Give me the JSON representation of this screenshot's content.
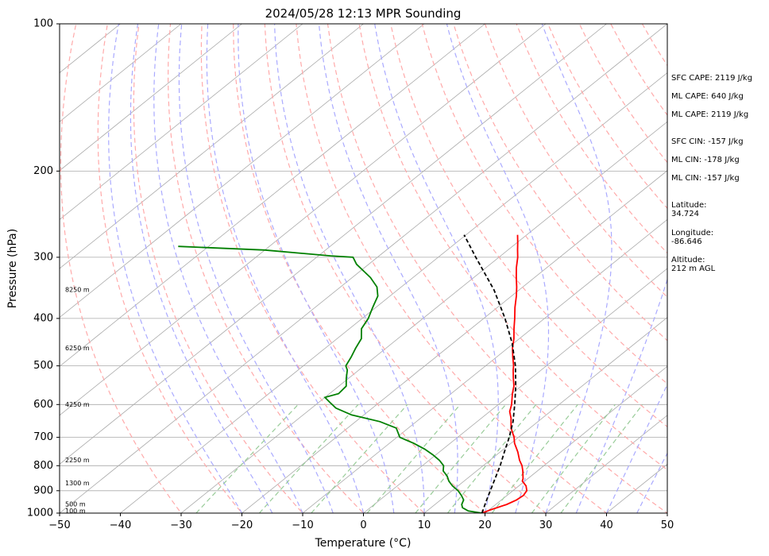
{
  "chart_data": {
    "type": "skew-t",
    "title": "2024/05/28 12:13 MPR Sounding",
    "xlabel": "Temperature (°C)",
    "ylabel": "Pressure (hPa)",
    "xlim": [
      -50,
      50
    ],
    "ylim": [
      1000,
      100
    ],
    "y_log_scale": true,
    "x_ticks": [
      "−50",
      "−40",
      "−30",
      "−20",
      "−10",
      "0",
      "10",
      "20",
      "30",
      "40",
      "50"
    ],
    "y_ticks": [
      "100",
      "200",
      "300",
      "400",
      "500",
      "600",
      "700",
      "800",
      "900",
      "1000"
    ],
    "height_labels": [
      "8250 m",
      "6250 m",
      "4250 m",
      "2250 m",
      "1300 m",
      "500 m",
      "100 m"
    ],
    "height_label_pressures": [
      350,
      460,
      600,
      780,
      870,
      960,
      990
    ],
    "grid": true,
    "colors": {
      "temperature": "#ff0000",
      "dewpoint": "#008000",
      "parcel": "#000000",
      "isotherm": "#aaaaaa",
      "dry_adiabat": "#ffaaaa",
      "moist_adiabat": "#aaaaff",
      "mixing_ratio": "#99cc99"
    },
    "series": [
      {
        "name": "Temperature",
        "pressure": [
          1000,
          985,
          960,
          940,
          920,
          900,
          880,
          860,
          850,
          820,
          800,
          780,
          750,
          720,
          700,
          670,
          640,
          620,
          600,
          570,
          550,
          530,
          510,
          500,
          480,
          460,
          440,
          420,
          400,
          380,
          360,
          345,
          330,
          315,
          300,
          290,
          280,
          270
        ],
        "temperature": [
          19.5,
          20.2,
          21.8,
          22.5,
          22.7,
          22.3,
          21.2,
          19.6,
          19.2,
          17.6,
          16.4,
          14.9,
          12.9,
          10.6,
          9.3,
          6.9,
          4.9,
          3.3,
          2.2,
          0.1,
          -1.2,
          -2.9,
          -4.6,
          -5.4,
          -7.3,
          -9.2,
          -10.9,
          -12.9,
          -14.9,
          -17.1,
          -19.2,
          -21.0,
          -23.0,
          -25.0,
          -26.9,
          -28.4,
          -29.9,
          -31.5
        ]
      },
      {
        "name": "Dewpoint",
        "pressure": [
          1000,
          990,
          975,
          960,
          940,
          920,
          900,
          880,
          860,
          840,
          820,
          800,
          780,
          760,
          740,
          720,
          700,
          670,
          650,
          630,
          610,
          595,
          580,
          570,
          550,
          530,
          510,
          500,
          480,
          460,
          440,
          420,
          400,
          380,
          360,
          345,
          330,
          310,
          300,
          298,
          290,
          285
        ],
        "temperature": [
          19.5,
          16.8,
          15.2,
          14.4,
          13.8,
          12.5,
          11.0,
          9.1,
          7.5,
          6.2,
          4.5,
          3.5,
          1.7,
          -0.5,
          -3.0,
          -6.0,
          -9.5,
          -12.0,
          -16.0,
          -22.0,
          -26.0,
          -28.0,
          -30.0,
          -28.5,
          -28.8,
          -30.4,
          -31.9,
          -33.0,
          -33.9,
          -35.0,
          -36.0,
          -38.0,
          -39.0,
          -40.5,
          -42.0,
          -44.0,
          -47.0,
          -52.0,
          -54.0,
          -58.0,
          -70.0,
          -85.0
        ]
      },
      {
        "name": "Parcel",
        "pressure": [
          1000,
          950,
          900,
          850,
          800,
          750,
          700,
          650,
          600,
          550,
          500,
          450,
          400,
          350,
          300,
          270
        ],
        "temperature": [
          19.5,
          17.9,
          16.3,
          14.6,
          12.8,
          10.7,
          8.5,
          5.9,
          2.7,
          -0.9,
          -5.1,
          -10.2,
          -16.5,
          -24.1,
          -33.8,
          -40.3
        ]
      }
    ]
  },
  "side_info": {
    "sfc_cape": "SFC CAPE: 2119 J/kg",
    "ml_cape_1": "ML CAPE: 640 J/kg",
    "ml_cape_2": "ML CAPE: 2119 J/kg",
    "sfc_cin": "SFC CIN: -157 J/kg",
    "ml_cin_1": "ML CIN: -178 J/kg",
    "ml_cin_2": "ML CIN: -157 J/kg",
    "latitude": "Latitude:\n34.724",
    "longitude": "Longitude:\n-86.646",
    "altitude": "Altitude:\n212 m AGL"
  }
}
